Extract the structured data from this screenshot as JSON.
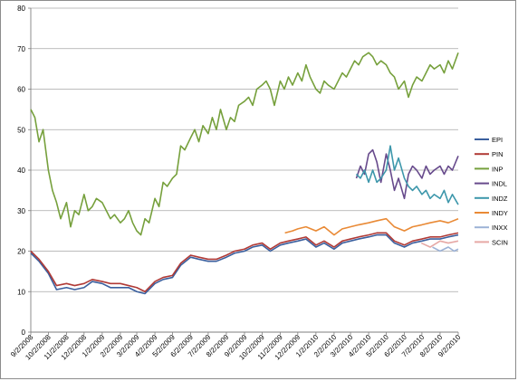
{
  "chart_data": {
    "type": "line",
    "title": "",
    "xlabel": "",
    "ylabel": "",
    "ylim": [
      0,
      80
    ],
    "yticks": [
      "0",
      "10",
      "20",
      "30",
      "40",
      "50",
      "60",
      "70",
      "80"
    ],
    "xlim": [
      "9/2/2008",
      "9/2/2010"
    ],
    "xticks": [
      "9/2/2008",
      "10/2/2008",
      "11/2/2008",
      "12/2/2008",
      "1/2/2009",
      "2/2/2009",
      "3/2/2009",
      "4/2/2009",
      "5/2/2009",
      "6/2/2009",
      "7/2/2009",
      "8/2/2009",
      "9/2/2009",
      "10/2/2009",
      "11/2/2009",
      "12/2/2009",
      "1/2/2010",
      "2/2/2010",
      "3/2/2010",
      "4/2/2010",
      "5/2/2010",
      "6/2/2010",
      "7/2/2010",
      "8/2/2010",
      "9/2/2010"
    ],
    "grid": "horizontal",
    "legend_position": "right",
    "series": [
      {
        "name": "EPI",
        "color": "#3a5f9e",
        "x": [
          "9/2/2008",
          "9/16/2008",
          "10/2/2008",
          "10/16/2008",
          "11/2/2008",
          "11/16/2008",
          "12/2/2008",
          "12/16/2008",
          "1/2/2009",
          "1/16/2009",
          "2/2/2009",
          "2/16/2009",
          "3/2/2009",
          "3/16/2009",
          "4/2/2009",
          "4/16/2009",
          "5/2/2009",
          "5/16/2009",
          "6/2/2009",
          "6/16/2009",
          "7/2/2009",
          "7/16/2009",
          "8/2/2009",
          "8/16/2009",
          "9/2/2009",
          "9/16/2009",
          "10/2/2009",
          "10/16/2009",
          "11/2/2009",
          "11/16/2009",
          "12/2/2009",
          "12/16/2009",
          "1/2/2010",
          "1/16/2010",
          "2/2/2010",
          "2/16/2010",
          "3/2/2010",
          "3/16/2010",
          "4/2/2010",
          "4/16/2010",
          "5/2/2010",
          "5/16/2010",
          "6/2/2010",
          "6/16/2010",
          "7/2/2010",
          "7/16/2010",
          "8/2/2010",
          "8/16/2010",
          "9/2/2010"
        ],
        "y": [
          19.5,
          17.5,
          14.5,
          10.5,
          11,
          10.5,
          11,
          12.5,
          12,
          11,
          11,
          11,
          10,
          9.5,
          12,
          13,
          13.5,
          16.5,
          18.5,
          18,
          17.5,
          17.5,
          18.5,
          19.5,
          20,
          21,
          21.5,
          20,
          21.5,
          22,
          22.5,
          23,
          21,
          22,
          20.5,
          22,
          22.5,
          23,
          23.5,
          24,
          24,
          22,
          21,
          22,
          22.5,
          23,
          23,
          23.5,
          24
        ]
      },
      {
        "name": "PIN",
        "color": "#b03a36",
        "x": [
          "9/2/2008",
          "9/16/2008",
          "10/2/2008",
          "10/16/2008",
          "11/2/2008",
          "11/16/2008",
          "12/2/2008",
          "12/16/2008",
          "1/2/2009",
          "1/16/2009",
          "2/2/2009",
          "2/16/2009",
          "3/2/2009",
          "3/16/2009",
          "4/2/2009",
          "4/16/2009",
          "5/2/2009",
          "5/16/2009",
          "6/2/2009",
          "6/16/2009",
          "7/2/2009",
          "7/16/2009",
          "8/2/2009",
          "8/16/2009",
          "9/2/2009",
          "9/16/2009",
          "10/2/2009",
          "10/16/2009",
          "11/2/2009",
          "11/16/2009",
          "12/2/2009",
          "12/16/2009",
          "1/2/2010",
          "1/16/2010",
          "2/2/2010",
          "2/16/2010",
          "3/2/2010",
          "3/16/2010",
          "4/2/2010",
          "4/16/2010",
          "5/2/2010",
          "5/16/2010",
          "6/2/2010",
          "6/16/2010",
          "7/2/2010",
          "7/16/2010",
          "8/2/2010",
          "8/16/2010",
          "9/2/2010"
        ],
        "y": [
          20,
          18,
          15,
          11.5,
          12,
          11.5,
          12,
          13,
          12.5,
          12,
          12,
          11.5,
          11,
          10,
          12.5,
          13.5,
          14,
          17,
          19,
          18.5,
          18,
          18,
          19,
          20,
          20.5,
          21.5,
          22,
          20.5,
          22,
          22.5,
          23,
          23.5,
          21.5,
          22.5,
          21,
          22.5,
          23,
          23.5,
          24,
          24.5,
          24.5,
          22.5,
          21.5,
          22.5,
          23,
          23.5,
          23.5,
          24,
          24.5
        ]
      },
      {
        "name": "INP",
        "color": "#76a03c",
        "x": [
          "9/2/2008",
          "9/9/2008",
          "9/16/2008",
          "9/23/2008",
          "10/2/2008",
          "10/9/2008",
          "10/16/2008",
          "10/23/2008",
          "11/2/2008",
          "11/9/2008",
          "11/16/2008",
          "11/23/2008",
          "12/2/2008",
          "12/9/2008",
          "12/16/2008",
          "12/23/2008",
          "1/2/2009",
          "1/9/2009",
          "1/16/2009",
          "1/23/2009",
          "2/2/2009",
          "2/9/2009",
          "2/16/2009",
          "2/23/2009",
          "3/2/2009",
          "3/9/2009",
          "3/16/2009",
          "3/23/2009",
          "4/2/2009",
          "4/9/2009",
          "4/16/2009",
          "4/23/2009",
          "5/2/2009",
          "5/9/2009",
          "5/16/2009",
          "5/23/2009",
          "6/2/2009",
          "6/9/2009",
          "6/16/2009",
          "6/23/2009",
          "7/2/2009",
          "7/9/2009",
          "7/16/2009",
          "7/23/2009",
          "8/2/2009",
          "8/9/2009",
          "8/16/2009",
          "8/23/2009",
          "9/2/2009",
          "9/9/2009",
          "9/16/2009",
          "9/23/2009",
          "10/2/2009",
          "10/9/2009",
          "10/16/2009",
          "10/23/2009",
          "11/2/2009",
          "11/9/2009",
          "11/16/2009",
          "11/23/2009",
          "12/2/2009",
          "12/9/2009",
          "12/16/2009",
          "12/23/2009",
          "1/2/2010",
          "1/9/2010",
          "1/16/2010",
          "1/23/2010",
          "2/2/2010",
          "2/9/2010",
          "2/16/2010",
          "2/23/2010",
          "3/2/2010",
          "3/9/2010",
          "3/16/2010",
          "3/23/2010",
          "4/2/2010",
          "4/9/2010",
          "4/16/2010",
          "4/23/2010",
          "5/2/2010",
          "5/9/2010",
          "5/16/2010",
          "5/23/2010",
          "6/2/2010",
          "6/9/2010",
          "6/16/2010",
          "6/23/2010",
          "7/2/2010",
          "7/9/2010",
          "7/16/2010",
          "7/23/2010",
          "8/2/2010",
          "8/9/2010",
          "8/16/2010",
          "8/23/2010",
          "9/2/2010"
        ],
        "y": [
          55,
          53,
          47,
          50,
          40,
          35,
          32,
          28,
          32,
          26,
          30,
          29,
          34,
          30,
          31,
          33,
          32,
          30,
          28,
          29,
          27,
          28,
          30,
          27,
          25,
          24,
          28,
          27,
          33,
          31,
          37,
          36,
          38,
          39,
          46,
          45,
          48,
          50,
          47,
          51,
          49,
          53,
          50,
          55,
          50,
          53,
          52,
          56,
          57,
          58,
          56,
          60,
          61,
          62,
          60,
          56,
          62,
          60,
          63,
          61,
          64,
          62,
          66,
          63,
          60,
          59,
          62,
          61,
          60,
          62,
          64,
          63,
          65,
          67,
          66,
          68,
          69,
          68,
          66,
          67,
          66,
          64,
          63,
          60,
          62,
          58,
          61,
          63,
          62,
          64,
          66,
          65,
          66,
          64,
          67,
          65,
          69
        ]
      },
      {
        "name": "INDL",
        "color": "#674a8c",
        "x": [
          "3/12/2010",
          "3/19/2010",
          "3/26/2010",
          "4/2/2010",
          "4/9/2010",
          "4/16/2010",
          "4/23/2010",
          "5/2/2010",
          "5/9/2010",
          "5/16/2010",
          "5/23/2010",
          "6/2/2010",
          "6/9/2010",
          "6/16/2010",
          "6/23/2010",
          "7/2/2010",
          "7/9/2010",
          "7/16/2010",
          "7/23/2010",
          "8/2/2010",
          "8/9/2010",
          "8/16/2010",
          "8/23/2010",
          "9/2/2010"
        ],
        "y": [
          38,
          41,
          39,
          44,
          45,
          42,
          37,
          44,
          40,
          35,
          38,
          33,
          39,
          41,
          40,
          38,
          41,
          39,
          40,
          41,
          39,
          41,
          40,
          43.5
        ]
      },
      {
        "name": "INDZ",
        "color": "#3d97ab",
        "x": [
          "3/12/2010",
          "3/19/2010",
          "3/26/2010",
          "4/2/2010",
          "4/9/2010",
          "4/16/2010",
          "4/23/2010",
          "5/2/2010",
          "5/9/2010",
          "5/16/2010",
          "5/23/2010",
          "6/2/2010",
          "6/9/2010",
          "6/16/2010",
          "6/23/2010",
          "7/2/2010",
          "7/9/2010",
          "7/16/2010",
          "7/23/2010",
          "8/2/2010",
          "8/9/2010",
          "8/16/2010",
          "8/23/2010",
          "9/2/2010"
        ],
        "y": [
          39,
          38,
          40,
          37,
          40,
          37,
          38,
          40,
          46,
          40,
          43,
          38,
          36,
          35,
          36,
          34,
          35,
          33,
          34,
          33,
          35,
          32,
          34,
          31.5
        ]
      },
      {
        "name": "INDY",
        "color": "#e98a36",
        "x": [
          "11/10/2009",
          "11/23/2009",
          "12/2/2009",
          "12/16/2009",
          "1/2/2010",
          "1/16/2010",
          "2/2/2010",
          "2/16/2010",
          "3/2/2010",
          "3/16/2010",
          "4/2/2010",
          "4/16/2010",
          "5/2/2010",
          "5/16/2010",
          "6/2/2010",
          "6/16/2010",
          "7/2/2010",
          "7/16/2010",
          "8/2/2010",
          "8/16/2010",
          "9/2/2010"
        ],
        "y": [
          24.5,
          25,
          25.5,
          26,
          25,
          26,
          24,
          25.5,
          26,
          26.5,
          27,
          27.5,
          28,
          26,
          25,
          26,
          26.5,
          27,
          27.5,
          27,
          28
        ]
      },
      {
        "name": "INXX",
        "color": "#9cb2d6",
        "x": [
          "7/20/2010",
          "8/2/2010",
          "8/16/2010",
          "8/26/2010",
          "9/2/2010"
        ],
        "y": [
          21,
          20,
          21,
          20,
          20.5
        ]
      },
      {
        "name": "SCIN",
        "color": "#e6a8a5",
        "x": [
          "7/1/2010",
          "7/16/2010",
          "8/2/2010",
          "8/16/2010",
          "9/2/2010"
        ],
        "y": [
          22,
          21,
          22.5,
          22,
          22.5
        ]
      }
    ]
  }
}
